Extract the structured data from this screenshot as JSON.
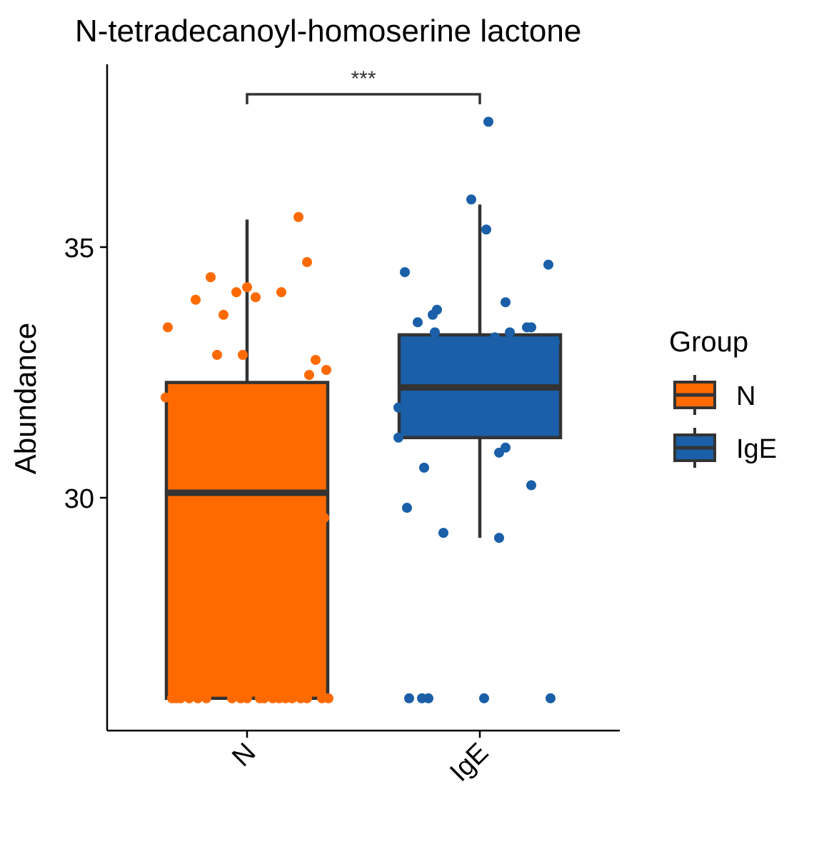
{
  "chart_data": {
    "type": "box",
    "title": "N-tetradecanoyl-homoserine lactone",
    "xlabel": "",
    "ylabel": "Abundance",
    "ylim": [
      25.4,
      38.6
    ],
    "yticks": [
      30,
      35
    ],
    "categories": [
      "N",
      "IgE"
    ],
    "colors": {
      "N": "#FF6A00",
      "IgE": "#1A5FA8"
    },
    "box_edge_color": "#333333",
    "boxes": [
      {
        "group": "N",
        "q1": 26.0,
        "median": 30.1,
        "q3": 32.3,
        "whisker_low": 26.0,
        "whisker_high": 35.55
      },
      {
        "group": "IgE",
        "q1": 31.2,
        "median": 32.2,
        "q3": 33.25,
        "whisker_low": 29.2,
        "whisker_high": 35.85
      }
    ],
    "points": {
      "N": [
        {
          "j": -0.38,
          "y": 32.0
        },
        {
          "j": -0.37,
          "y": 33.4
        },
        {
          "j": -0.24,
          "y": 33.95
        },
        {
          "j": -0.17,
          "y": 34.4
        },
        {
          "j": -0.14,
          "y": 32.85
        },
        {
          "j": -0.11,
          "y": 33.65
        },
        {
          "j": -0.05,
          "y": 34.1
        },
        {
          "j": -0.02,
          "y": 32.85
        },
        {
          "j": 0.0,
          "y": 34.2
        },
        {
          "j": 0.04,
          "y": 34.0
        },
        {
          "j": 0.16,
          "y": 34.1
        },
        {
          "j": 0.24,
          "y": 35.6
        },
        {
          "j": 0.28,
          "y": 34.7
        },
        {
          "j": 0.32,
          "y": 32.75
        },
        {
          "j": 0.29,
          "y": 32.45
        },
        {
          "j": 0.37,
          "y": 32.55
        },
        {
          "j": -0.23,
          "y": 30.15
        },
        {
          "j": 0.17,
          "y": 30.25
        },
        {
          "j": 0.36,
          "y": 29.6
        },
        {
          "j": -0.35,
          "y": 26.0
        },
        {
          "j": -0.33,
          "y": 26.0
        },
        {
          "j": -0.31,
          "y": 26.0
        },
        {
          "j": -0.27,
          "y": 26.0
        },
        {
          "j": -0.23,
          "y": 26.0
        },
        {
          "j": -0.19,
          "y": 26.0
        },
        {
          "j": -0.07,
          "y": 26.0
        },
        {
          "j": -0.03,
          "y": 26.0
        },
        {
          "j": 0.0,
          "y": 26.0
        },
        {
          "j": 0.06,
          "y": 26.0
        },
        {
          "j": 0.08,
          "y": 26.0
        },
        {
          "j": 0.12,
          "y": 26.0
        },
        {
          "j": 0.15,
          "y": 26.0
        },
        {
          "j": 0.18,
          "y": 26.0
        },
        {
          "j": 0.21,
          "y": 26.0
        },
        {
          "j": 0.25,
          "y": 26.0
        },
        {
          "j": 0.28,
          "y": 26.0
        },
        {
          "j": 0.35,
          "y": 26.0
        },
        {
          "j": 0.38,
          "y": 26.0
        }
      ],
      "IgE": [
        {
          "j": 0.04,
          "y": 37.5
        },
        {
          "j": -0.04,
          "y": 35.95
        },
        {
          "j": 0.03,
          "y": 35.35
        },
        {
          "j": -0.35,
          "y": 34.5
        },
        {
          "j": 0.32,
          "y": 34.65
        },
        {
          "j": -0.29,
          "y": 33.5
        },
        {
          "j": -0.22,
          "y": 33.65
        },
        {
          "j": -0.2,
          "y": 33.75
        },
        {
          "j": -0.21,
          "y": 33.3
        },
        {
          "j": 0.12,
          "y": 33.9
        },
        {
          "j": 0.07,
          "y": 33.2
        },
        {
          "j": 0.14,
          "y": 33.3
        },
        {
          "j": 0.22,
          "y": 33.4
        },
        {
          "j": 0.24,
          "y": 33.4
        },
        {
          "j": 0.35,
          "y": 33.1
        },
        {
          "j": 0.31,
          "y": 32.3
        },
        {
          "j": -0.28,
          "y": 32.2
        },
        {
          "j": 0.24,
          "y": 32.15
        },
        {
          "j": -0.38,
          "y": 31.8
        },
        {
          "j": -0.38,
          "y": 31.2
        },
        {
          "j": 0.18,
          "y": 31.35
        },
        {
          "j": 0.09,
          "y": 30.9
        },
        {
          "j": 0.12,
          "y": 31.0
        },
        {
          "j": -0.26,
          "y": 30.6
        },
        {
          "j": 0.24,
          "y": 30.25
        },
        {
          "j": -0.34,
          "y": 29.8
        },
        {
          "j": -0.17,
          "y": 29.3
        },
        {
          "j": 0.09,
          "y": 29.2
        },
        {
          "j": -0.33,
          "y": 26.0
        },
        {
          "j": -0.27,
          "y": 26.0
        },
        {
          "j": -0.24,
          "y": 26.0
        },
        {
          "j": 0.02,
          "y": 26.0
        },
        {
          "j": 0.33,
          "y": 26.0
        }
      ]
    },
    "significance": {
      "label": "***",
      "from": "N",
      "to": "IgE"
    },
    "legend": {
      "title": "Group",
      "entries": [
        "N",
        "IgE"
      ],
      "position": "right"
    }
  }
}
